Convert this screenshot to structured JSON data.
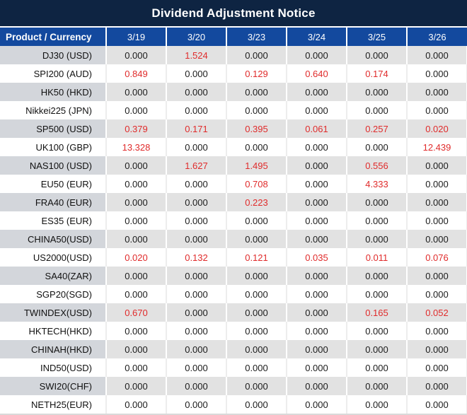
{
  "title": "Dividend Adjustment Notice",
  "colors": {
    "title_bar_bg": "#0e2442",
    "header_bg": "#13499e",
    "header_text": "#ffffff",
    "gray_row_values_bg": "#e2e2e2",
    "gray_row_label_bg": "#d3d6db",
    "white_row_bg": "#ffffff",
    "value_text": "#1b1b1b",
    "highlight_red": "#e02b2b"
  },
  "table": {
    "columns": [
      "Product / Currency",
      "3/19",
      "3/20",
      "3/23",
      "3/24",
      "3/25",
      "3/26"
    ],
    "rows": [
      {
        "product": "DJ30 (USD)",
        "values": [
          "0.000",
          "1.524",
          "0.000",
          "0.000",
          "0.000",
          "0.000"
        ],
        "red": [
          1
        ]
      },
      {
        "product": "SPI200 (AUD)",
        "values": [
          "0.849",
          "0.000",
          "0.129",
          "0.640",
          "0.174",
          "0.000"
        ],
        "red": [
          0,
          2,
          3,
          4
        ]
      },
      {
        "product": "HK50 (HKD)",
        "values": [
          "0.000",
          "0.000",
          "0.000",
          "0.000",
          "0.000",
          "0.000"
        ],
        "red": []
      },
      {
        "product": "Nikkei225 (JPN)",
        "values": [
          "0.000",
          "0.000",
          "0.000",
          "0.000",
          "0.000",
          "0.000"
        ],
        "red": []
      },
      {
        "product": "SP500 (USD)",
        "values": [
          "0.379",
          "0.171",
          "0.395",
          "0.061",
          "0.257",
          "0.020"
        ],
        "red": [
          0,
          1,
          2,
          3,
          4,
          5
        ]
      },
      {
        "product": "UK100 (GBP)",
        "values": [
          "13.328",
          "0.000",
          "0.000",
          "0.000",
          "0.000",
          "12.439"
        ],
        "red": [
          0,
          5
        ]
      },
      {
        "product": "NAS100 (USD)",
        "values": [
          "0.000",
          "1.627",
          "1.495",
          "0.000",
          "0.556",
          "0.000"
        ],
        "red": [
          1,
          2,
          4
        ]
      },
      {
        "product": "EU50 (EUR)",
        "values": [
          "0.000",
          "0.000",
          "0.708",
          "0.000",
          "4.333",
          "0.000"
        ],
        "red": [
          2,
          4
        ]
      },
      {
        "product": "FRA40 (EUR)",
        "values": [
          "0.000",
          "0.000",
          "0.223",
          "0.000",
          "0.000",
          "0.000"
        ],
        "red": [
          2
        ]
      },
      {
        "product": "ES35 (EUR)",
        "values": [
          "0.000",
          "0.000",
          "0.000",
          "0.000",
          "0.000",
          "0.000"
        ],
        "red": []
      },
      {
        "product": "CHINA50(USD)",
        "values": [
          "0.000",
          "0.000",
          "0.000",
          "0.000",
          "0.000",
          "0.000"
        ],
        "red": []
      },
      {
        "product": "US2000(USD)",
        "values": [
          "0.020",
          "0.132",
          "0.121",
          "0.035",
          "0.011",
          "0.076"
        ],
        "red": [
          0,
          1,
          2,
          3,
          4,
          5
        ]
      },
      {
        "product": "SA40(ZAR)",
        "values": [
          "0.000",
          "0.000",
          "0.000",
          "0.000",
          "0.000",
          "0.000"
        ],
        "red": []
      },
      {
        "product": "SGP20(SGD)",
        "values": [
          "0.000",
          "0.000",
          "0.000",
          "0.000",
          "0.000",
          "0.000"
        ],
        "red": []
      },
      {
        "product": "TWINDEX(USD)",
        "values": [
          "0.670",
          "0.000",
          "0.000",
          "0.000",
          "0.165",
          "0.052"
        ],
        "red": [
          0,
          4,
          5
        ]
      },
      {
        "product": "HKTECH(HKD)",
        "values": [
          "0.000",
          "0.000",
          "0.000",
          "0.000",
          "0.000",
          "0.000"
        ],
        "red": []
      },
      {
        "product": "CHINAH(HKD)",
        "values": [
          "0.000",
          "0.000",
          "0.000",
          "0.000",
          "0.000",
          "0.000"
        ],
        "red": []
      },
      {
        "product": "IND50(USD)",
        "values": [
          "0.000",
          "0.000",
          "0.000",
          "0.000",
          "0.000",
          "0.000"
        ],
        "red": []
      },
      {
        "product": "SWI20(CHF)",
        "values": [
          "0.000",
          "0.000",
          "0.000",
          "0.000",
          "0.000",
          "0.000"
        ],
        "red": []
      },
      {
        "product": "NETH25(EUR)",
        "values": [
          "0.000",
          "0.000",
          "0.000",
          "0.000",
          "0.000",
          "0.000"
        ],
        "red": []
      }
    ]
  }
}
